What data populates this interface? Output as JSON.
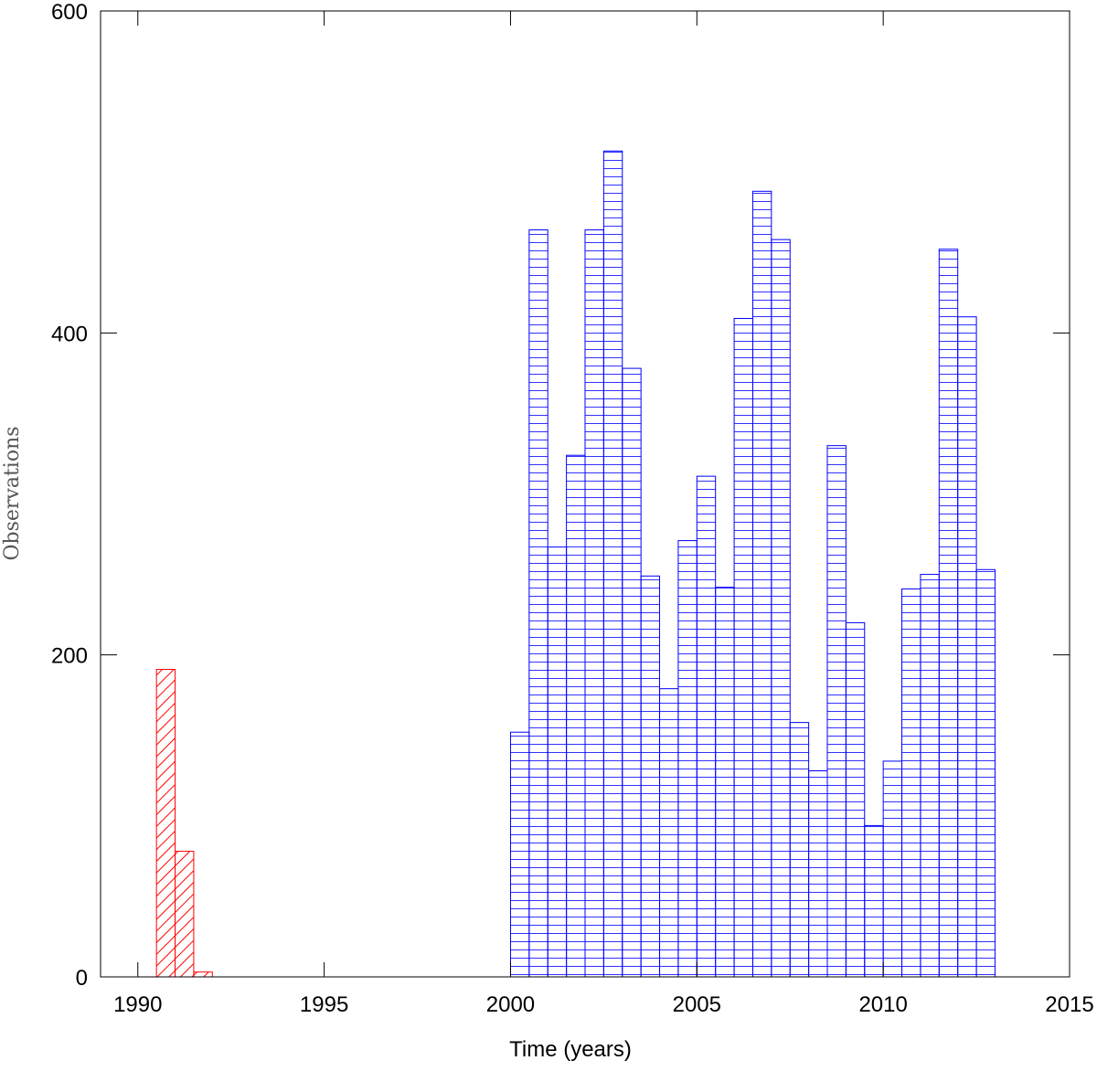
{
  "chart_data": {
    "type": "histogram",
    "x_label": "Time (years)",
    "y_label": "Observations",
    "xlim": [
      1989,
      2015
    ],
    "xticks": [
      1990,
      1995,
      2000,
      2005,
      2010,
      2015
    ],
    "ylim": [
      0,
      600
    ],
    "yticks": [
      0,
      200,
      400,
      600
    ],
    "series": [
      {
        "color": "#ff0000",
        "hatch": "diagonal",
        "bins": [
          1990.5,
          1991,
          1991.5,
          1992
        ],
        "values": [
          191,
          78,
          3
        ]
      },
      {
        "color": "#0000ff",
        "hatch": "horizontal",
        "bins": [
          2000,
          2000.5,
          2001,
          2001.5,
          2002,
          2002.5,
          2003,
          2003.5,
          2004,
          2004.5,
          2005,
          2005.5,
          2006,
          2006.5,
          2007,
          2007.5,
          2008,
          2008.5,
          2009,
          2009.5,
          2010,
          2010.5,
          2011,
          2011.5,
          2012,
          2012.5,
          2013
        ],
        "values": [
          152,
          464,
          267,
          324,
          464,
          513,
          378,
          249,
          179,
          271,
          311,
          242,
          409,
          488,
          458,
          158,
          128,
          330,
          220,
          94,
          134,
          241,
          250,
          452,
          410,
          253
        ]
      }
    ]
  }
}
